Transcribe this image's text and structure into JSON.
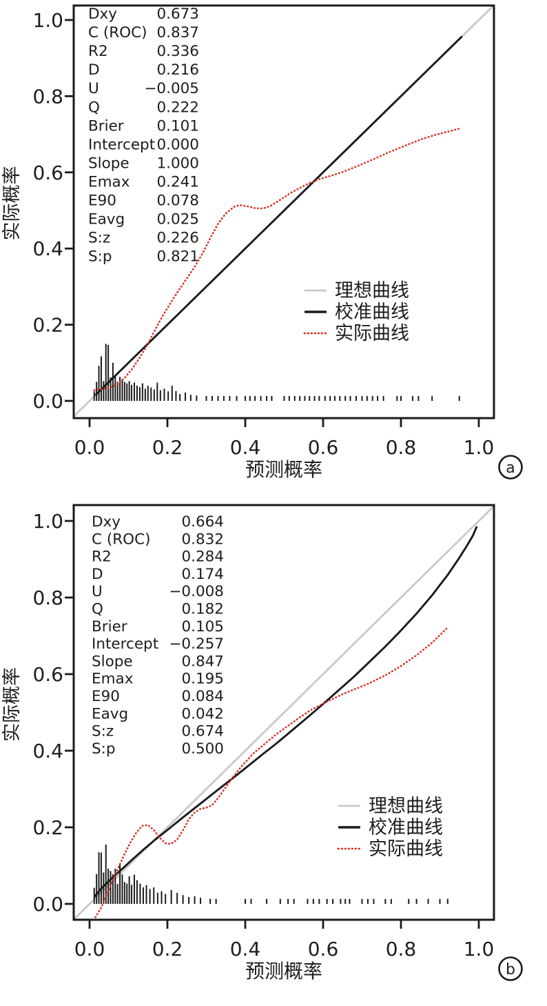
{
  "colors": {
    "ideal": "#c8c8c8",
    "calibration": "#1a1a1a",
    "actual": "#d93025",
    "axis": "#1a1a1a",
    "text": "#1d1d1d",
    "background": "#ffffff"
  },
  "chart_data": [
    {
      "type": "line",
      "panel_label": "a",
      "xlabel": "预测概率",
      "ylabel": "实际概率",
      "xlim": [
        -0.042,
        1.039
      ],
      "ylim": [
        -0.045,
        1.038
      ],
      "xticks": [
        "0.0",
        "0.2",
        "0.4",
        "0.6",
        "0.8",
        "1.0"
      ],
      "yticks": [
        "0.0",
        "0.2",
        "0.4",
        "0.6",
        "0.8",
        "1.0"
      ],
      "grid": false,
      "legend_position": "lower-right-inside",
      "legend": [
        {
          "label": "理想曲线",
          "style": "solid",
          "color": "#c8c8c8"
        },
        {
          "label": "校准曲线",
          "style": "solid",
          "color": "#1a1a1a"
        },
        {
          "label": "实际曲线",
          "style": "dotted",
          "color": "#d93025"
        }
      ],
      "stats": [
        {
          "label": "Dxy",
          "value": "0.673"
        },
        {
          "label": "C (ROC)",
          "value": "0.837"
        },
        {
          "label": "R2",
          "value": "0.336"
        },
        {
          "label": "D",
          "value": "0.216"
        },
        {
          "label": "U",
          "value": "−0.005"
        },
        {
          "label": "Q",
          "value": "0.222"
        },
        {
          "label": "Brier",
          "value": "0.101"
        },
        {
          "label": "Intercept",
          "value": "0.000"
        },
        {
          "label": "Slope",
          "value": "1.000"
        },
        {
          "label": "Emax",
          "value": "0.241"
        },
        {
          "label": "E90",
          "value": "0.078"
        },
        {
          "label": "Eavg",
          "value": "0.025"
        },
        {
          "label": "S:z",
          "value": "0.226"
        },
        {
          "label": "S:p",
          "value": "0.821"
        }
      ],
      "series": {
        "ideal": [
          [
            -0.042,
            -0.042
          ],
          [
            1.039,
            1.039
          ]
        ],
        "calibration": [
          [
            0.015,
            0.015
          ],
          [
            0.957,
            0.957
          ]
        ],
        "actual": [
          [
            0.012,
            0.028
          ],
          [
            0.03,
            0.031
          ],
          [
            0.05,
            0.034
          ],
          [
            0.07,
            0.043
          ],
          [
            0.09,
            0.06
          ],
          [
            0.11,
            0.085
          ],
          [
            0.13,
            0.115
          ],
          [
            0.15,
            0.15
          ],
          [
            0.17,
            0.19
          ],
          [
            0.19,
            0.227
          ],
          [
            0.21,
            0.26
          ],
          [
            0.23,
            0.292
          ],
          [
            0.25,
            0.322
          ],
          [
            0.27,
            0.352
          ],
          [
            0.29,
            0.387
          ],
          [
            0.31,
            0.427
          ],
          [
            0.33,
            0.465
          ],
          [
            0.35,
            0.492
          ],
          [
            0.37,
            0.509
          ],
          [
            0.385,
            0.514
          ],
          [
            0.405,
            0.511
          ],
          [
            0.425,
            0.506
          ],
          [
            0.445,
            0.505
          ],
          [
            0.465,
            0.512
          ],
          [
            0.49,
            0.528
          ],
          [
            0.515,
            0.545
          ],
          [
            0.54,
            0.559
          ],
          [
            0.565,
            0.572
          ],
          [
            0.59,
            0.582
          ],
          [
            0.62,
            0.591
          ],
          [
            0.65,
            0.601
          ],
          [
            0.69,
            0.617
          ],
          [
            0.73,
            0.635
          ],
          [
            0.77,
            0.653
          ],
          [
            0.81,
            0.67
          ],
          [
            0.85,
            0.686
          ],
          [
            0.89,
            0.699
          ],
          [
            0.925,
            0.708
          ],
          [
            0.95,
            0.715
          ]
        ]
      },
      "rug": [
        [
          0.012,
          0.025
        ],
        [
          0.018,
          0.05
        ],
        [
          0.024,
          0.092
        ],
        [
          0.03,
          0.117
        ],
        [
          0.036,
          0.052
        ],
        [
          0.042,
          0.15
        ],
        [
          0.048,
          0.147
        ],
        [
          0.054,
          0.062
        ],
        [
          0.06,
          0.1
        ],
        [
          0.066,
          0.066
        ],
        [
          0.072,
          0.05
        ],
        [
          0.078,
          0.063
        ],
        [
          0.084,
          0.056
        ],
        [
          0.09,
          0.05
        ],
        [
          0.096,
          0.046
        ],
        [
          0.102,
          0.052
        ],
        [
          0.108,
          0.042
        ],
        [
          0.115,
          0.048
        ],
        [
          0.122,
          0.04
        ],
        [
          0.129,
          0.036
        ],
        [
          0.136,
          0.046
        ],
        [
          0.143,
          0.032
        ],
        [
          0.15,
          0.04
        ],
        [
          0.158,
          0.035
        ],
        [
          0.166,
          0.03
        ],
        [
          0.174,
          0.048
        ],
        [
          0.182,
          0.028
        ],
        [
          0.192,
          0.032
        ],
        [
          0.202,
          0.025
        ],
        [
          0.212,
          0.04
        ],
        [
          0.222,
          0.026
        ],
        [
          0.232,
          0.018
        ],
        [
          0.246,
          0.022
        ],
        [
          0.26,
          0.016
        ],
        [
          0.275,
          0.014
        ],
        [
          0.3,
          0.013
        ],
        [
          0.315,
          0.013
        ],
        [
          0.33,
          0.013
        ],
        [
          0.345,
          0.013
        ],
        [
          0.36,
          0.013
        ],
        [
          0.378,
          0.013
        ],
        [
          0.4,
          0.013
        ],
        [
          0.412,
          0.013
        ],
        [
          0.425,
          0.013
        ],
        [
          0.44,
          0.013
        ],
        [
          0.455,
          0.013
        ],
        [
          0.468,
          0.013
        ],
        [
          0.5,
          0.013
        ],
        [
          0.513,
          0.013
        ],
        [
          0.527,
          0.013
        ],
        [
          0.54,
          0.013
        ],
        [
          0.553,
          0.013
        ],
        [
          0.565,
          0.013
        ],
        [
          0.578,
          0.013
        ],
        [
          0.59,
          0.013
        ],
        [
          0.605,
          0.013
        ],
        [
          0.618,
          0.013
        ],
        [
          0.63,
          0.013
        ],
        [
          0.643,
          0.013
        ],
        [
          0.657,
          0.013
        ],
        [
          0.67,
          0.013
        ],
        [
          0.685,
          0.013
        ],
        [
          0.7,
          0.013
        ],
        [
          0.713,
          0.013
        ],
        [
          0.727,
          0.013
        ],
        [
          0.74,
          0.013
        ],
        [
          0.755,
          0.013
        ],
        [
          0.79,
          0.013
        ],
        [
          0.8,
          0.013
        ],
        [
          0.83,
          0.013
        ],
        [
          0.845,
          0.013
        ],
        [
          0.88,
          0.013
        ],
        [
          0.95,
          0.013
        ]
      ]
    },
    {
      "type": "line",
      "panel_label": "b",
      "xlabel": "预测概率",
      "ylabel": "实际概率",
      "xlim": [
        -0.042,
        1.041
      ],
      "ylim": [
        -0.045,
        1.041
      ],
      "xticks": [
        "0.0",
        "0.2",
        "0.4",
        "0.6",
        "0.8",
        "1.0"
      ],
      "yticks": [
        "0.0",
        "0.2",
        "0.4",
        "0.6",
        "0.8",
        "1.0"
      ],
      "grid": false,
      "legend_position": "lower-right-inside",
      "legend": [
        {
          "label": "理想曲线",
          "style": "solid",
          "color": "#c8c8c8"
        },
        {
          "label": "校准曲线",
          "style": "solid",
          "color": "#1a1a1a"
        },
        {
          "label": "实际曲线",
          "style": "dotted",
          "color": "#d93025"
        }
      ],
      "stats": [
        {
          "label": "Dxy",
          "value": "0.664"
        },
        {
          "label": "C (ROC)",
          "value": "0.832"
        },
        {
          "label": "R2",
          "value": "0.284"
        },
        {
          "label": "D",
          "value": "0.174"
        },
        {
          "label": "U",
          "value": "−0.008"
        },
        {
          "label": "Q",
          "value": "0.182"
        },
        {
          "label": "Brier",
          "value": "0.105"
        },
        {
          "label": "Intercept",
          "value": "−0.257"
        },
        {
          "label": "Slope",
          "value": "0.847"
        },
        {
          "label": "Emax",
          "value": "0.195"
        },
        {
          "label": "E90",
          "value": "0.084"
        },
        {
          "label": "Eavg",
          "value": "0.042"
        },
        {
          "label": "S:z",
          "value": "0.674"
        },
        {
          "label": "S:p",
          "value": "0.500"
        }
      ],
      "series": {
        "ideal": [
          [
            -0.042,
            -0.042
          ],
          [
            1.041,
            1.041
          ]
        ],
        "calibration": [
          [
            0.012,
            0.018
          ],
          [
            0.02,
            0.028
          ],
          [
            0.03,
            0.04
          ],
          [
            0.05,
            0.06
          ],
          [
            0.07,
            0.079
          ],
          [
            0.09,
            0.097
          ],
          [
            0.11,
            0.116
          ],
          [
            0.14,
            0.143
          ],
          [
            0.17,
            0.169
          ],
          [
            0.2,
            0.193
          ],
          [
            0.24,
            0.226
          ],
          [
            0.28,
            0.258
          ],
          [
            0.32,
            0.29
          ],
          [
            0.36,
            0.322
          ],
          [
            0.4,
            0.354
          ],
          [
            0.44,
            0.387
          ],
          [
            0.48,
            0.419
          ],
          [
            0.52,
            0.453
          ],
          [
            0.56,
            0.487
          ],
          [
            0.6,
            0.522
          ],
          [
            0.64,
            0.558
          ],
          [
            0.68,
            0.594
          ],
          [
            0.72,
            0.633
          ],
          [
            0.76,
            0.672
          ],
          [
            0.8,
            0.714
          ],
          [
            0.84,
            0.758
          ],
          [
            0.88,
            0.806
          ],
          [
            0.92,
            0.859
          ],
          [
            0.95,
            0.904
          ],
          [
            0.97,
            0.936
          ],
          [
            0.985,
            0.962
          ],
          [
            0.995,
            0.986
          ]
        ],
        "actual": [
          [
            0.015,
            -0.035
          ],
          [
            0.03,
            -0.01
          ],
          [
            0.045,
            0.026
          ],
          [
            0.06,
            0.062
          ],
          [
            0.075,
            0.097
          ],
          [
            0.09,
            0.13
          ],
          [
            0.105,
            0.16
          ],
          [
            0.12,
            0.186
          ],
          [
            0.135,
            0.204
          ],
          [
            0.15,
            0.206
          ],
          [
            0.165,
            0.193
          ],
          [
            0.18,
            0.173
          ],
          [
            0.195,
            0.158
          ],
          [
            0.21,
            0.157
          ],
          [
            0.225,
            0.168
          ],
          [
            0.24,
            0.192
          ],
          [
            0.255,
            0.221
          ],
          [
            0.27,
            0.239
          ],
          [
            0.285,
            0.248
          ],
          [
            0.3,
            0.251
          ],
          [
            0.315,
            0.258
          ],
          [
            0.33,
            0.276
          ],
          [
            0.35,
            0.305
          ],
          [
            0.37,
            0.333
          ],
          [
            0.39,
            0.359
          ],
          [
            0.42,
            0.392
          ],
          [
            0.45,
            0.418
          ],
          [
            0.48,
            0.443
          ],
          [
            0.51,
            0.465
          ],
          [
            0.54,
            0.487
          ],
          [
            0.57,
            0.507
          ],
          [
            0.6,
            0.523
          ],
          [
            0.63,
            0.538
          ],
          [
            0.66,
            0.552
          ],
          [
            0.69,
            0.564
          ],
          [
            0.72,
            0.577
          ],
          [
            0.76,
            0.597
          ],
          [
            0.8,
            0.621
          ],
          [
            0.84,
            0.649
          ],
          [
            0.88,
            0.682
          ],
          [
            0.92,
            0.722
          ]
        ]
      },
      "rug": [
        [
          0.012,
          0.042
        ],
        [
          0.018,
          0.078
        ],
        [
          0.024,
          0.135
        ],
        [
          0.03,
          0.134
        ],
        [
          0.036,
          0.082
        ],
        [
          0.042,
          0.155
        ],
        [
          0.048,
          0.092
        ],
        [
          0.054,
          0.086
        ],
        [
          0.06,
          0.077
        ],
        [
          0.066,
          0.092
        ],
        [
          0.072,
          0.052
        ],
        [
          0.078,
          0.102
        ],
        [
          0.084,
          0.077
        ],
        [
          0.09,
          0.057
        ],
        [
          0.096,
          0.053
        ],
        [
          0.102,
          0.072
        ],
        [
          0.108,
          0.05
        ],
        [
          0.115,
          0.076
        ],
        [
          0.122,
          0.062
        ],
        [
          0.13,
          0.053
        ],
        [
          0.138,
          0.043
        ],
        [
          0.146,
          0.049
        ],
        [
          0.155,
          0.039
        ],
        [
          0.165,
          0.043
        ],
        [
          0.175,
          0.029
        ],
        [
          0.185,
          0.033
        ],
        [
          0.195,
          0.026
        ],
        [
          0.21,
          0.036
        ],
        [
          0.225,
          0.029
        ],
        [
          0.24,
          0.023
        ],
        [
          0.255,
          0.018
        ],
        [
          0.27,
          0.02
        ],
        [
          0.285,
          0.016
        ],
        [
          0.31,
          0.013
        ],
        [
          0.325,
          0.013
        ],
        [
          0.4,
          0.013
        ],
        [
          0.415,
          0.013
        ],
        [
          0.455,
          0.013
        ],
        [
          0.49,
          0.013
        ],
        [
          0.51,
          0.013
        ],
        [
          0.525,
          0.013
        ],
        [
          0.56,
          0.013
        ],
        [
          0.575,
          0.013
        ],
        [
          0.59,
          0.013
        ],
        [
          0.61,
          0.013
        ],
        [
          0.625,
          0.013
        ],
        [
          0.645,
          0.013
        ],
        [
          0.657,
          0.013
        ],
        [
          0.668,
          0.013
        ],
        [
          0.7,
          0.013
        ],
        [
          0.715,
          0.013
        ],
        [
          0.73,
          0.013
        ],
        [
          0.76,
          0.013
        ],
        [
          0.775,
          0.013
        ],
        [
          0.82,
          0.013
        ],
        [
          0.84,
          0.013
        ],
        [
          0.87,
          0.013
        ],
        [
          0.9,
          0.013
        ],
        [
          0.92,
          0.013
        ]
      ]
    }
  ]
}
